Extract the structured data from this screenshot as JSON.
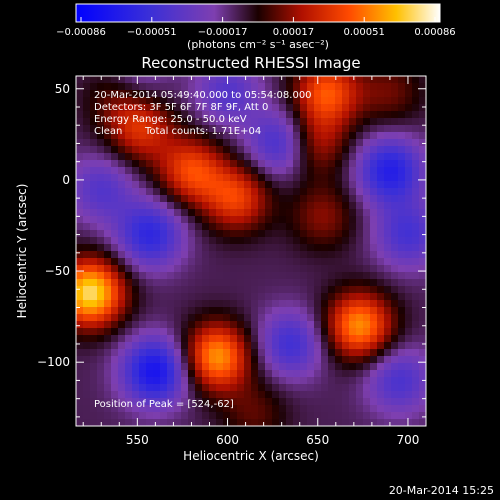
{
  "chart_data": {
    "type": "heatmap",
    "title": "Reconstructed RHESSI Image",
    "xlabel": "Heliocentric X (arcsec)",
    "ylabel": "Heliocentric Y (arcsec)",
    "xlim": [
      516,
      710
    ],
    "ylim": [
      -135,
      57
    ],
    "xticks": [
      550,
      600,
      650,
      700
    ],
    "xticklabels": [
      "550",
      "600",
      "650",
      "700"
    ],
    "yticks": [
      50,
      0,
      -50,
      -100
    ],
    "yticklabels": [
      "50",
      "0",
      "−50",
      "−100"
    ],
    "colorbar": {
      "ticklabels": [
        "−0.00086",
        "−0.00051",
        "−0.00017",
        "0.00017",
        "0.00051",
        "0.00086"
      ],
      "range": [
        -0.00086,
        0.00086
      ],
      "unit_text": "(photons cm⁻² s⁻¹ asec⁻²)"
    },
    "colors": {
      "background": "#000000",
      "text": "#ffffff",
      "low": "#0000ff",
      "mid_low": "#7e3fb0",
      "mid": "#1a0000",
      "mid_high": "#d42000",
      "high": "#ffd000",
      "peak": "#ffffff"
    },
    "annotations": [
      "20-Mar-2014 05:49:40.000 to 05:54:08.000",
      "Detectors: 3F 5F 6F 7F 8F 9F, Att 0",
      "Energy Range: 25.0 - 50.0 keV",
      "Clean",
      "Total counts: 1.71E+04"
    ],
    "peak_label": "Position of Peak = [524,-62]",
    "peak": [
      524,
      -62
    ],
    "sources": [
      {
        "x": 524,
        "y": -62,
        "amp": 1.0
      },
      {
        "x": 594,
        "y": -97,
        "amp": 0.8
      },
      {
        "x": 673,
        "y": -80,
        "amp": 0.78
      },
      {
        "x": 580,
        "y": 5,
        "amp": 0.58
      },
      {
        "x": 605,
        "y": -10,
        "amp": 0.56
      },
      {
        "x": 552,
        "y": 28,
        "amp": 0.48
      },
      {
        "x": 655,
        "y": 48,
        "amp": 0.62
      },
      {
        "x": 648,
        "y": 20,
        "amp": 0.42
      },
      {
        "x": 653,
        "y": -20,
        "amp": 0.3
      },
      {
        "x": 690,
        "y": 48,
        "amp": 0.25
      },
      {
        "x": 540,
        "y": 47,
        "amp": 0.3
      },
      {
        "x": 615,
        "y": -128,
        "amp": 0.22
      },
      {
        "x": 557,
        "y": -30,
        "amp": -0.55
      },
      {
        "x": 560,
        "y": -105,
        "amp": -0.72
      },
      {
        "x": 630,
        "y": 20,
        "amp": -0.5
      },
      {
        "x": 690,
        "y": 5,
        "amp": -0.62
      },
      {
        "x": 695,
        "y": -110,
        "amp": -0.4
      },
      {
        "x": 700,
        "y": -30,
        "amp": -0.42
      },
      {
        "x": 635,
        "y": -90,
        "amp": -0.45
      },
      {
        "x": 530,
        "y": -5,
        "amp": -0.35
      },
      {
        "x": 600,
        "y": 48,
        "amp": -0.35
      },
      {
        "x": 548,
        "y": 55,
        "amp": -0.3
      }
    ]
  },
  "footer": {
    "timestamp": "20-Mar-2014 15:25"
  }
}
